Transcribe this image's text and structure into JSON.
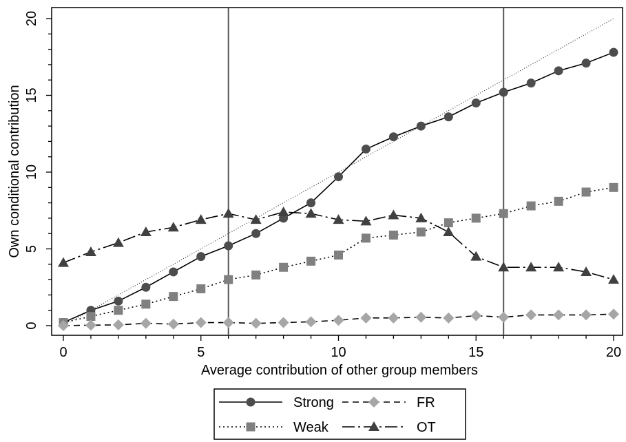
{
  "chart_data": {
    "type": "line",
    "title": "",
    "xlabel": "Average contribution of other group members",
    "ylabel": "Own conditional contribution",
    "xlim": [
      0,
      20
    ],
    "ylim": [
      0,
      20
    ],
    "xticks": [
      "0",
      "5",
      "10",
      "15",
      "20"
    ],
    "yticks": [
      "0",
      "5",
      "10",
      "15",
      "20"
    ],
    "x": [
      0,
      1,
      2,
      3,
      4,
      5,
      6,
      7,
      8,
      9,
      10,
      11,
      12,
      13,
      14,
      15,
      16,
      17,
      18,
      19,
      20
    ],
    "reference_lines": [
      6,
      16
    ],
    "diagonal": true,
    "legend_position": "bottom",
    "series": [
      {
        "name": "Strong",
        "color": "#4d4d4d",
        "marker": "circle",
        "line": "solid",
        "values": [
          0.2,
          1.0,
          1.6,
          2.5,
          3.5,
          4.5,
          5.2,
          6.0,
          7.0,
          8.0,
          9.7,
          11.5,
          12.3,
          13.0,
          13.6,
          14.5,
          15.2,
          15.8,
          16.6,
          17.1,
          17.8
        ]
      },
      {
        "name": "Weak",
        "color": "#808080",
        "marker": "square",
        "line": "dotted",
        "values": [
          0.2,
          0.6,
          1.0,
          1.4,
          1.9,
          2.4,
          3.0,
          3.3,
          3.8,
          4.2,
          4.6,
          5.7,
          5.9,
          6.1,
          6.7,
          7.0,
          7.3,
          7.8,
          8.1,
          8.7,
          9.0
        ]
      },
      {
        "name": "FR",
        "color": "#a6a6a6",
        "marker": "diamond",
        "line": "dashed",
        "values": [
          0.0,
          0.03,
          0.05,
          0.15,
          0.1,
          0.2,
          0.2,
          0.15,
          0.2,
          0.25,
          0.35,
          0.5,
          0.5,
          0.55,
          0.5,
          0.65,
          0.55,
          0.7,
          0.7,
          0.7,
          0.75
        ]
      },
      {
        "name": "OT",
        "color": "#404040",
        "marker": "triangle",
        "line": "longdash",
        "values": [
          4.1,
          4.8,
          5.4,
          6.1,
          6.4,
          6.9,
          7.3,
          6.9,
          7.4,
          7.3,
          6.9,
          6.8,
          7.2,
          7.0,
          6.1,
          4.5,
          3.8,
          3.8,
          3.8,
          3.5,
          3.0
        ]
      }
    ]
  }
}
